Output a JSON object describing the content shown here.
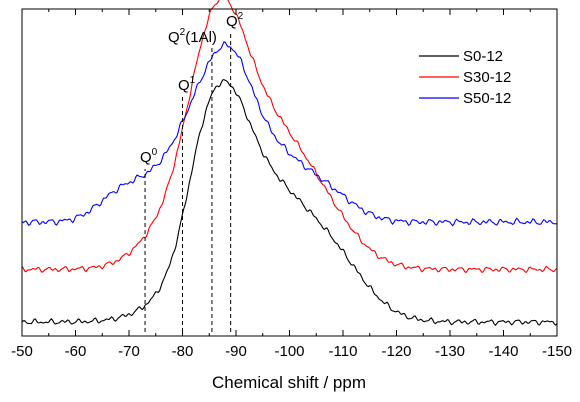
{
  "chart_data": {
    "type": "line",
    "xlabel": "Chemical shift / ppm",
    "ylabel": "",
    "xlim": [
      -50,
      -150
    ],
    "x_reversed": true,
    "x_ticks": [
      "-50",
      "-60",
      "-70",
      "-80",
      "-90",
      "-100",
      "-110",
      "-120",
      "-130",
      "-140",
      "-150"
    ],
    "y_ticks_visible": false,
    "grid": false,
    "legend_position": "top-right",
    "series": [
      {
        "name": "S0-12",
        "color": "#000000",
        "baseline": 0.0,
        "peak_height": 8.3,
        "peaks": [
          {
            "center": 83.0,
            "height": 1.6,
            "width": 3.2
          },
          {
            "center": 87.7,
            "height": 3.7,
            "width": 4.2
          },
          {
            "center": 89.5,
            "height": 3.9,
            "width": 8.5
          },
          {
            "center": 98.0,
            "height": 2.1,
            "width": 8.5
          },
          {
            "center": 105.5,
            "height": 1.3,
            "width": 7.5
          },
          {
            "center": 110.0,
            "height": 0.6,
            "width": 5.5
          }
        ],
        "noise_amplitude": 0.12
      },
      {
        "name": "S30-12",
        "color": "#ff0000",
        "baseline": 2.0,
        "peak_height": 9.4,
        "peaks": [
          {
            "center": 77.0,
            "height": 0.7,
            "width": 5.5
          },
          {
            "center": 83.0,
            "height": 2.0,
            "width": 3.8
          },
          {
            "center": 87.7,
            "height": 3.8,
            "width": 4.2
          },
          {
            "center": 89.5,
            "height": 4.2,
            "width": 8.5
          },
          {
            "center": 97.5,
            "height": 2.6,
            "width": 8.5
          },
          {
            "center": 106.0,
            "height": 1.1,
            "width": 6.5
          }
        ],
        "noise_amplitude": 0.12
      },
      {
        "name": "S50-12",
        "color": "#0000ff",
        "baseline": 3.8,
        "peak_height": 10.2,
        "peaks": [
          {
            "center": 68.0,
            "height": 0.9,
            "width": 4.2
          },
          {
            "center": 76.5,
            "height": 1.6,
            "width": 5.0
          },
          {
            "center": 82.5,
            "height": 2.0,
            "width": 3.8
          },
          {
            "center": 88.5,
            "height": 4.1,
            "width": 4.2
          },
          {
            "center": 93.0,
            "height": 2.2,
            "width": 7.0
          },
          {
            "center": 100.0,
            "height": 1.0,
            "width": 6.0
          },
          {
            "center": 108.0,
            "height": 0.7,
            "width": 5.0
          }
        ],
        "noise_amplitude": 0.14
      }
    ],
    "annotations": [
      {
        "base": "Q",
        "sup": "0",
        "after": "",
        "x": -73
      },
      {
        "base": "Q",
        "sup": "1",
        "after": "",
        "x": -80
      },
      {
        "base": "Q",
        "sup": "2",
        "after": "(1Al)",
        "x": -85.5
      },
      {
        "base": "Q",
        "sup": "2",
        "after": "",
        "x": -89
      }
    ]
  }
}
